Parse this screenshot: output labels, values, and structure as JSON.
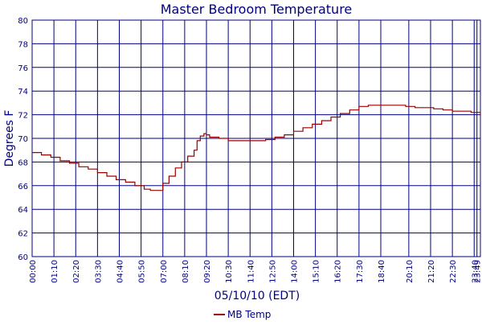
{
  "chart_data": {
    "type": "line",
    "title": "Master Bedroom Temperature",
    "xlabel": "05/10/10 (EDT)",
    "ylabel": "Degrees F",
    "ylim": [
      60,
      80
    ],
    "yticks": [
      60,
      62,
      64,
      66,
      68,
      70,
      72,
      74,
      76,
      78,
      80
    ],
    "xlim_hours": [
      0,
      24
    ],
    "xticks": [
      {
        "label": "00:00",
        "hour": 0.0
      },
      {
        "label": "01:10",
        "hour": 1.1667
      },
      {
        "label": "02:20",
        "hour": 2.3333
      },
      {
        "label": "03:30",
        "hour": 3.5
      },
      {
        "label": "04:40",
        "hour": 4.6667
      },
      {
        "label": "05:50",
        "hour": 5.8333
      },
      {
        "label": "07:00",
        "hour": 7.0
      },
      {
        "label": "08:10",
        "hour": 8.1667
      },
      {
        "label": "09:20",
        "hour": 9.3333
      },
      {
        "label": "10:30",
        "hour": 10.5
      },
      {
        "label": "11:40",
        "hour": 11.6667
      },
      {
        "label": "12:50",
        "hour": 12.8333
      },
      {
        "label": "14:00",
        "hour": 14.0
      },
      {
        "label": "15:10",
        "hour": 15.1667
      },
      {
        "label": "16:20",
        "hour": 16.3333
      },
      {
        "label": "17:30",
        "hour": 17.5
      },
      {
        "label": "18:40",
        "hour": 18.6667
      },
      {
        "label": "20:10",
        "hour": 20.1667
      },
      {
        "label": "21:20",
        "hour": 21.3333
      },
      {
        "label": "22:30",
        "hour": 22.5
      },
      {
        "label": "23:40",
        "hour": 23.6667
      },
      {
        "label": "23:49",
        "hour": 23.8167
      }
    ],
    "grid": true,
    "legend": "bottom",
    "colors": {
      "series": "#990000",
      "grid": "#000080",
      "text": "#000080",
      "background": "#ffffff"
    },
    "series": [
      {
        "name": "MB Temp",
        "x": [
          0.0,
          0.5,
          1.0,
          1.5,
          2.0,
          2.5,
          3.0,
          3.5,
          4.0,
          4.5,
          5.0,
          5.5,
          6.0,
          6.33,
          6.67,
          7.0,
          7.33,
          7.67,
          8.0,
          8.33,
          8.67,
          8.83,
          9.0,
          9.2,
          9.33,
          9.5,
          10.0,
          10.5,
          11.0,
          11.5,
          12.0,
          12.5,
          13.0,
          13.5,
          14.0,
          14.5,
          15.0,
          15.5,
          16.0,
          16.5,
          17.0,
          17.5,
          18.0,
          18.5,
          19.0,
          19.5,
          20.0,
          20.5,
          21.0,
          21.5,
          22.0,
          22.5,
          23.0,
          23.5,
          24.0
        ],
        "y": [
          68.8,
          68.6,
          68.4,
          68.1,
          67.9,
          67.6,
          67.4,
          67.1,
          66.8,
          66.5,
          66.3,
          66.0,
          65.7,
          65.6,
          65.6,
          66.2,
          66.8,
          67.5,
          68.0,
          68.5,
          69.0,
          69.8,
          70.2,
          70.4,
          70.3,
          70.1,
          70.0,
          69.8,
          69.8,
          69.8,
          69.8,
          69.9,
          70.1,
          70.3,
          70.6,
          70.9,
          71.2,
          71.5,
          71.8,
          72.1,
          72.4,
          72.7,
          72.8,
          72.8,
          72.8,
          72.8,
          72.7,
          72.6,
          72.6,
          72.5,
          72.4,
          72.3,
          72.3,
          72.2,
          71.9
        ]
      }
    ]
  }
}
